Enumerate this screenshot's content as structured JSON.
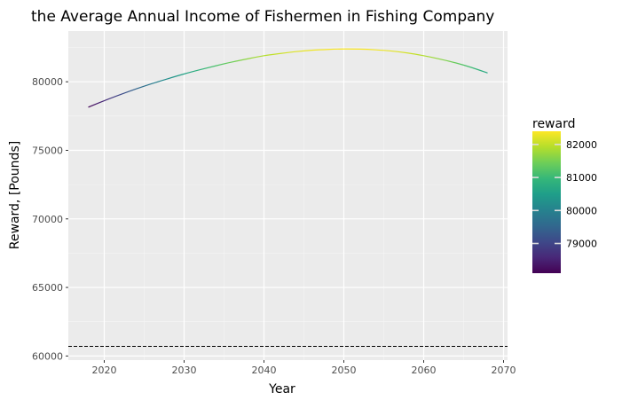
{
  "chart_data": {
    "type": "line",
    "title": "the Average Annual Income of Fishermen in Fishing Company",
    "xlabel": "Year",
    "ylabel": "Reward, [Pounds]",
    "xlim": [
      2015.5,
      2070.5
    ],
    "ylim": [
      59700,
      83700
    ],
    "x_ticks": [
      2020,
      2030,
      2040,
      2050,
      2060,
      2070
    ],
    "y_ticks": [
      60000,
      65000,
      70000,
      75000,
      80000
    ],
    "grid": true,
    "colorbar": {
      "title": "reward",
      "range": [
        78100,
        82400
      ],
      "ticks": [
        79000,
        80000,
        81000,
        82000
      ],
      "colors": [
        "#440154",
        "#482878",
        "#3e4989",
        "#31688e",
        "#26828e",
        "#1f9e89",
        "#35b779",
        "#6ece58",
        "#b5de2b",
        "#fde725"
      ],
      "placement": "right"
    },
    "reference_line": {
      "y": 60700,
      "style": "dashed"
    },
    "series": [
      {
        "x": [
          2018,
          2020,
          2022,
          2024,
          2026,
          2028,
          2030,
          2032,
          2034,
          2036,
          2038,
          2040,
          2042,
          2044,
          2046,
          2048,
          2050,
          2052,
          2054,
          2056,
          2058,
          2060,
          2062,
          2064,
          2066,
          2068
        ],
        "values": [
          78150,
          78620,
          79060,
          79480,
          79870,
          80230,
          80570,
          80880,
          81170,
          81440,
          81680,
          81900,
          82060,
          82200,
          82300,
          82360,
          82390,
          82380,
          82330,
          82240,
          82100,
          81900,
          81660,
          81380,
          81040,
          80640
        ]
      }
    ]
  }
}
